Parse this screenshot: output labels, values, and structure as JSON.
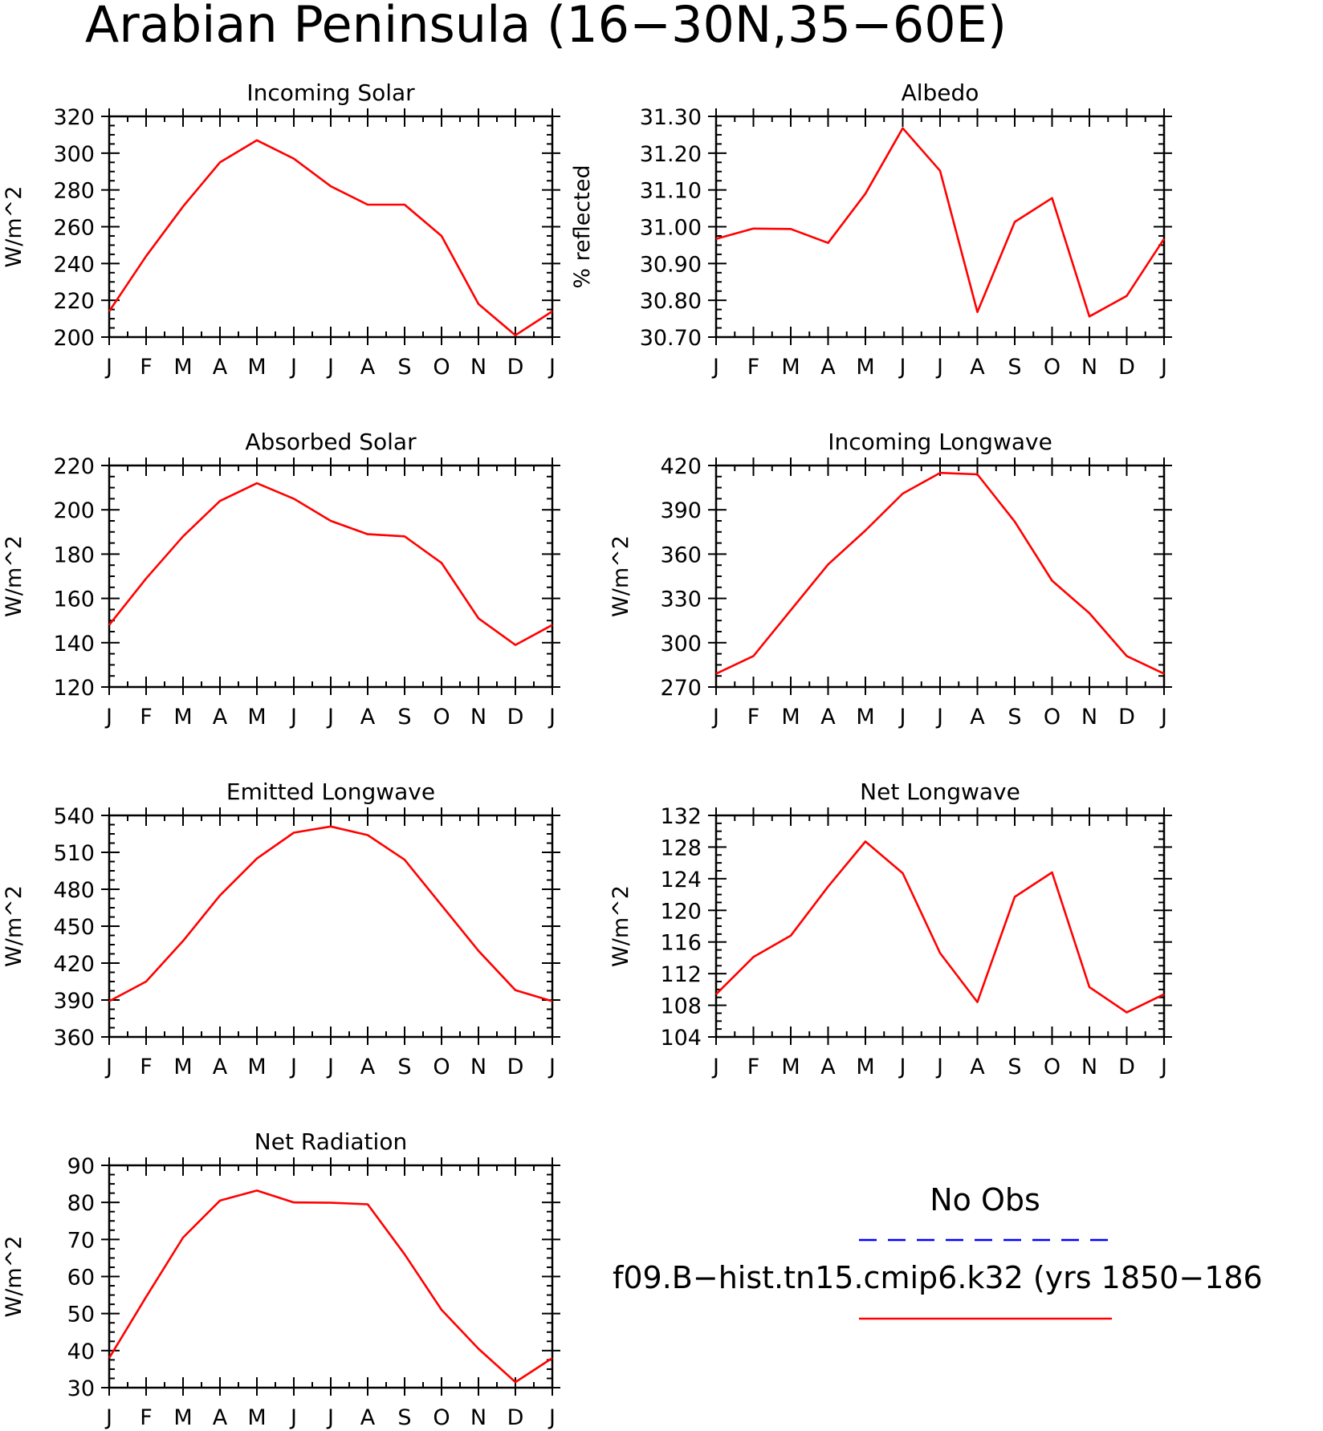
{
  "figure": {
    "title": "Arabian Peninsula (16−30N,35−60E)",
    "series_color": "#ff0000",
    "obs_color": "#0000ff"
  },
  "legend": {
    "obs_label": "No Obs",
    "model_label": "f09.B−hist.tn15.cmip6.k32 (yrs 1850−186"
  },
  "chart_data": [
    {
      "type": "line",
      "title": "Incoming Solar",
      "ylabel": "W/m^2",
      "categories": [
        "J",
        "F",
        "M",
        "A",
        "M",
        "J",
        "J",
        "A",
        "S",
        "O",
        "N",
        "D",
        "J"
      ],
      "ylim": [
        200,
        320
      ],
      "yticks": [
        "200",
        "220",
        "240",
        "260",
        "280",
        "300",
        "320"
      ],
      "grid": false,
      "series": [
        {
          "values": [
            214,
            244,
            271,
            295,
            307,
            297,
            282,
            272,
            272,
            255,
            218,
            201,
            214
          ]
        }
      ]
    },
    {
      "type": "line",
      "title": "Albedo",
      "ylabel": "% reflected",
      "categories": [
        "J",
        "F",
        "M",
        "A",
        "M",
        "J",
        "J",
        "A",
        "S",
        "O",
        "N",
        "D",
        "J"
      ],
      "ylim": [
        30.7,
        31.3
      ],
      "yticks": [
        "30.70",
        "30.80",
        "30.90",
        "31.00",
        "31.10",
        "31.20",
        "31.30"
      ],
      "grid": false,
      "series": [
        {
          "values": [
            30.967,
            30.995,
            30.994,
            30.956,
            31.09,
            31.268,
            31.152,
            30.768,
            31.013,
            31.078,
            30.756,
            30.812,
            30.967
          ]
        }
      ]
    },
    {
      "type": "line",
      "title": "Absorbed Solar",
      "ylabel": "W/m^2",
      "categories": [
        "J",
        "F",
        "M",
        "A",
        "M",
        "J",
        "J",
        "A",
        "S",
        "O",
        "N",
        "D",
        "J"
      ],
      "ylim": [
        120,
        220
      ],
      "yticks": [
        "120",
        "140",
        "160",
        "180",
        "200",
        "220"
      ],
      "grid": false,
      "series": [
        {
          "values": [
            148,
            169,
            188,
            204,
            212,
            205,
            195,
            189,
            188,
            176,
            151,
            139,
            148
          ]
        }
      ]
    },
    {
      "type": "line",
      "title": "Incoming Longwave",
      "ylabel": "W/m^2",
      "categories": [
        "J",
        "F",
        "M",
        "A",
        "M",
        "J",
        "J",
        "A",
        "S",
        "O",
        "N",
        "D",
        "J"
      ],
      "ylim": [
        270,
        420
      ],
      "yticks": [
        "270",
        "300",
        "330",
        "360",
        "390",
        "420"
      ],
      "grid": false,
      "series": [
        {
          "values": [
            279,
            291,
            322,
            353,
            376,
            401,
            415,
            414,
            382,
            342,
            320,
            291,
            279
          ]
        }
      ]
    },
    {
      "type": "line",
      "title": "Emitted Longwave",
      "ylabel": "W/m^2",
      "categories": [
        "J",
        "F",
        "M",
        "A",
        "M",
        "J",
        "J",
        "A",
        "S",
        "O",
        "N",
        "D",
        "J"
      ],
      "ylim": [
        360,
        540
      ],
      "yticks": [
        "360",
        "390",
        "420",
        "450",
        "480",
        "510",
        "540"
      ],
      "grid": false,
      "series": [
        {
          "values": [
            389,
            405,
            438,
            475,
            505,
            526,
            531,
            524,
            504,
            467,
            430,
            398,
            389
          ]
        }
      ]
    },
    {
      "type": "line",
      "title": "Net Longwave",
      "ylabel": "W/m^2",
      "categories": [
        "J",
        "F",
        "M",
        "A",
        "M",
        "J",
        "J",
        "A",
        "S",
        "O",
        "N",
        "D",
        "J"
      ],
      "ylim": [
        104,
        132
      ],
      "yticks": [
        "104",
        "108",
        "112",
        "116",
        "120",
        "124",
        "128",
        "132"
      ],
      "grid": false,
      "series": [
        {
          "values": [
            109.4,
            114.1,
            116.8,
            123.0,
            128.7,
            124.7,
            114.6,
            108.4,
            121.7,
            124.8,
            110.3,
            107.1,
            109.4
          ]
        }
      ]
    },
    {
      "type": "line",
      "title": "Net Radiation",
      "ylabel": "W/m^2",
      "categories": [
        "J",
        "F",
        "M",
        "A",
        "M",
        "J",
        "J",
        "A",
        "S",
        "O",
        "N",
        "D",
        "J"
      ],
      "ylim": [
        30,
        90
      ],
      "yticks": [
        "30",
        "40",
        "50",
        "60",
        "70",
        "80",
        "90"
      ],
      "grid": false,
      "series": [
        {
          "values": [
            38,
            54.5,
            70.5,
            80.5,
            83.2,
            80,
            79.9,
            79.5,
            66,
            51,
            40.5,
            31.5,
            38
          ]
        }
      ]
    }
  ]
}
